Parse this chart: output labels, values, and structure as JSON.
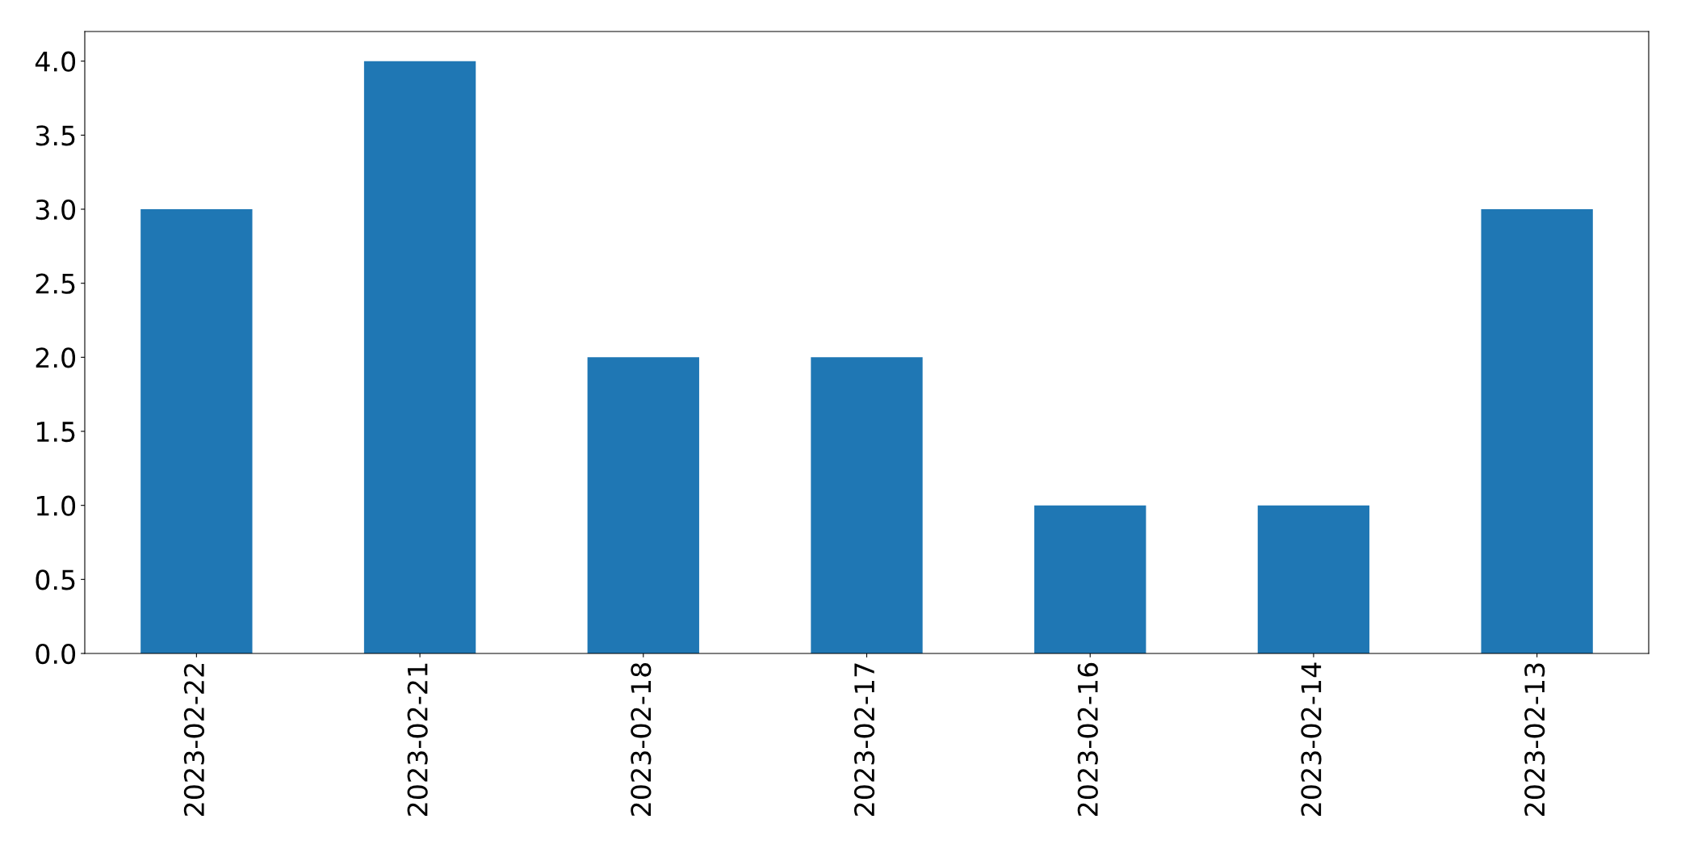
{
  "chart_data": {
    "type": "bar",
    "categories": [
      "2023-02-22",
      "2023-02-21",
      "2023-02-18",
      "2023-02-17",
      "2023-02-16",
      "2023-02-14",
      "2023-02-13"
    ],
    "values": [
      3,
      4,
      2,
      2,
      1,
      1,
      3
    ],
    "color": "#1f77b4",
    "ylim": [
      0,
      4.2
    ],
    "yticks": [
      {
        "value": 0,
        "label": "0.0"
      },
      0.5,
      {
        "value": 1,
        "label": "1.0"
      },
      1.5,
      {
        "value": 2,
        "label": "2.0"
      },
      2.5,
      {
        "value": 3,
        "label": "3.0"
      },
      3.5,
      {
        "value": 4,
        "label": "4.0"
      }
    ],
    "grid": false
  }
}
